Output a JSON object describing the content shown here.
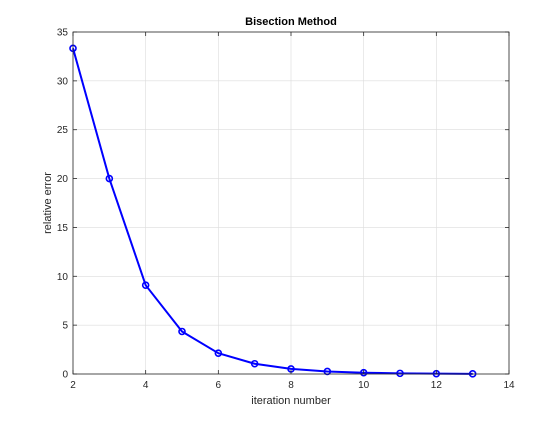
{
  "chart_data": {
    "type": "line",
    "title": "Bisection Method",
    "xlabel": "iteration number",
    "ylabel": "relative error",
    "xlim": [
      2,
      14
    ],
    "ylim": [
      0,
      35
    ],
    "xticks": [
      2,
      4,
      6,
      8,
      10,
      12,
      14
    ],
    "yticks": [
      0,
      5,
      10,
      15,
      20,
      25,
      30,
      35
    ],
    "grid": true,
    "legend": "none",
    "series": [
      {
        "color": "#0000ff",
        "marker": "circle",
        "x": [
          2,
          3,
          4,
          5,
          6,
          7,
          8,
          9,
          10,
          11,
          12,
          13
        ],
        "y": [
          33.33,
          20.0,
          9.09,
          4.35,
          2.13,
          1.05,
          0.52,
          0.26,
          0.13,
          0.065,
          0.033,
          0.016
        ]
      }
    ]
  }
}
